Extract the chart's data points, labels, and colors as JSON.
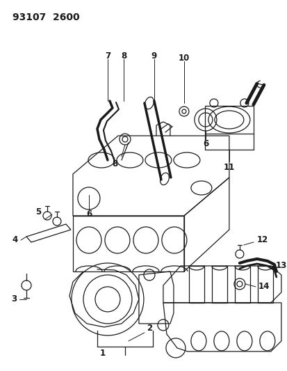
{
  "title": "93107  2600",
  "bg_color": "#ffffff",
  "line_color": "#1a1a1a",
  "lw": 0.9,
  "figsize": [
    4.14,
    5.33
  ],
  "dpi": 100
}
